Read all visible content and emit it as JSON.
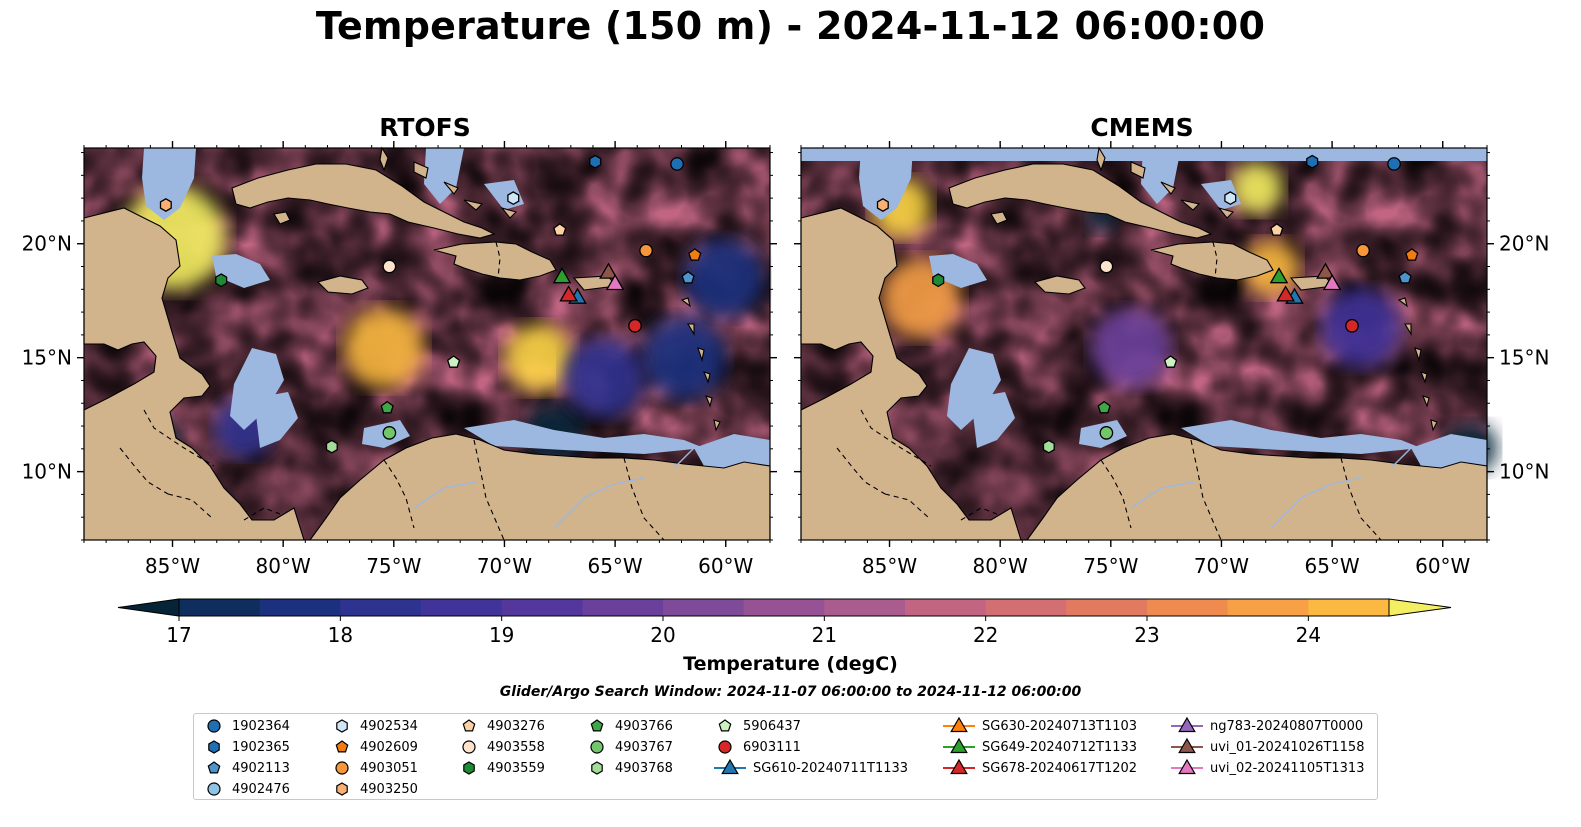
{
  "title": "Temperature (150 m) - 2024-11-12 06:00:00",
  "panels": [
    {
      "title": "RTOFS"
    },
    {
      "title": "CMEMS"
    }
  ],
  "axes": {
    "lon_ticks": [
      "85°W",
      "80°W",
      "75°W",
      "70°W",
      "65°W",
      "60°W"
    ],
    "lat_ticks": [
      "20°N",
      "15°N",
      "10°N"
    ],
    "lon_range": [
      -89,
      -58
    ],
    "lat_range": [
      7,
      24.2
    ]
  },
  "colorbar": {
    "label": "Temperature (degC)",
    "ticks": [
      "17",
      "18",
      "19",
      "20",
      "21",
      "22",
      "23",
      "24"
    ],
    "range": [
      17,
      24.5
    ],
    "step": 0.5,
    "colors": [
      "#062436",
      "#0e2e5e",
      "#1b3180",
      "#2e3390",
      "#40339a",
      "#53379c",
      "#69409b",
      "#7f4a98",
      "#955395",
      "#ab5c8f",
      "#c16583",
      "#d36e72",
      "#e27a60",
      "#f08b4f",
      "#f8a046",
      "#fcb941",
      "#fcd445",
      "#f4ef62"
    ],
    "land_color": "#d2b48c",
    "shallow_color": "#9cb8e0"
  },
  "search_window": "Glider/Argo Search Window: 2024-11-07 06:00:00 to 2024-11-12 06:00:00",
  "legend": [
    {
      "label": "1902364",
      "shape": "circle",
      "color": "#1f6fb4"
    },
    {
      "label": "1902365",
      "shape": "hexagon",
      "color": "#1f6fb4"
    },
    {
      "label": "4902113",
      "shape": "pentagon",
      "color": "#4d94cc"
    },
    {
      "label": "4902476",
      "shape": "circle",
      "color": "#90c4e6"
    },
    {
      "label": "4902534",
      "shape": "hexagon",
      "color": "#cfe6f6"
    },
    {
      "label": "4902609",
      "shape": "pentagon",
      "color": "#f07d12"
    },
    {
      "label": "4903051",
      "shape": "circle",
      "color": "#f7963a"
    },
    {
      "label": "4903250",
      "shape": "hexagon",
      "color": "#f9b072"
    },
    {
      "label": "4903276",
      "shape": "pentagon",
      "color": "#fcd2a4"
    },
    {
      "label": "4903558",
      "shape": "circle",
      "color": "#fde3cc"
    },
    {
      "label": "4903559",
      "shape": "hexagon",
      "color": "#1e8a36"
    },
    {
      "label": "4903766",
      "shape": "pentagon",
      "color": "#3fa64a"
    },
    {
      "label": "4903767",
      "shape": "circle",
      "color": "#72c76c"
    },
    {
      "label": "4903768",
      "shape": "hexagon",
      "color": "#a3dc98"
    },
    {
      "label": "5906437",
      "shape": "pentagon",
      "color": "#cdf0c2"
    },
    {
      "label": "6903111",
      "shape": "circle",
      "color": "#d62728"
    },
    {
      "label": "SG610-20240711T1133",
      "shape": "triangle",
      "color": "#1f77b4"
    },
    {
      "label": "SG630-20240713T1103",
      "shape": "triangle",
      "color": "#ff7f0e"
    },
    {
      "label": "SG649-20240712T1133",
      "shape": "triangle",
      "color": "#2ca02c"
    },
    {
      "label": "SG678-20240617T1202",
      "shape": "triangle",
      "color": "#d62728"
    },
    {
      "label": "ng783-20240807T0000",
      "shape": "triangle",
      "color": "#9467bd"
    },
    {
      "label": "uvi_01-20241026T1158",
      "shape": "triangle",
      "color": "#8c564b"
    },
    {
      "label": "uvi_02-20241105T1313",
      "shape": "triangle",
      "color": "#e377c2"
    }
  ],
  "markers": [
    {
      "id": "1902364",
      "lon": -62.2,
      "lat": 23.5
    },
    {
      "id": "1902365",
      "lon": -65.9,
      "lat": 23.6
    },
    {
      "id": "4902113",
      "lon": -61.7,
      "lat": 18.5
    },
    {
      "id": "4902534",
      "lon": -69.6,
      "lat": 22.0
    },
    {
      "id": "4902609",
      "lon": -61.4,
      "lat": 19.5
    },
    {
      "id": "4903051",
      "lon": -63.6,
      "lat": 19.7
    },
    {
      "id": "4903276",
      "lon": -67.5,
      "lat": 20.6
    },
    {
      "id": "4903250",
      "lon": -85.3,
      "lat": 21.7
    },
    {
      "id": "4903558",
      "lon": -75.2,
      "lat": 19.0
    },
    {
      "id": "4903559",
      "lon": -82.8,
      "lat": 18.4
    },
    {
      "id": "4903766",
      "lon": -75.3,
      "lat": 12.8
    },
    {
      "id": "4903767",
      "lon": -75.2,
      "lat": 11.7
    },
    {
      "id": "4903768",
      "lon": -77.8,
      "lat": 11.1
    },
    {
      "id": "5906437",
      "lon": -72.3,
      "lat": 14.8
    },
    {
      "id": "6903111",
      "lon": -64.1,
      "lat": 16.4
    },
    {
      "id": "SG610-20240711T1133",
      "lon": -66.7,
      "lat": 17.6
    },
    {
      "id": "SG649-20240712T1133",
      "lon": -67.4,
      "lat": 18.5
    },
    {
      "id": "SG678-20240617T1202",
      "lon": -67.1,
      "lat": 17.7
    },
    {
      "id": "uvi_01-20241026T1158",
      "lon": -65.3,
      "lat": 18.7
    },
    {
      "id": "uvi_02-20241105T1313",
      "lon": -65.0,
      "lat": 18.2
    }
  ]
}
